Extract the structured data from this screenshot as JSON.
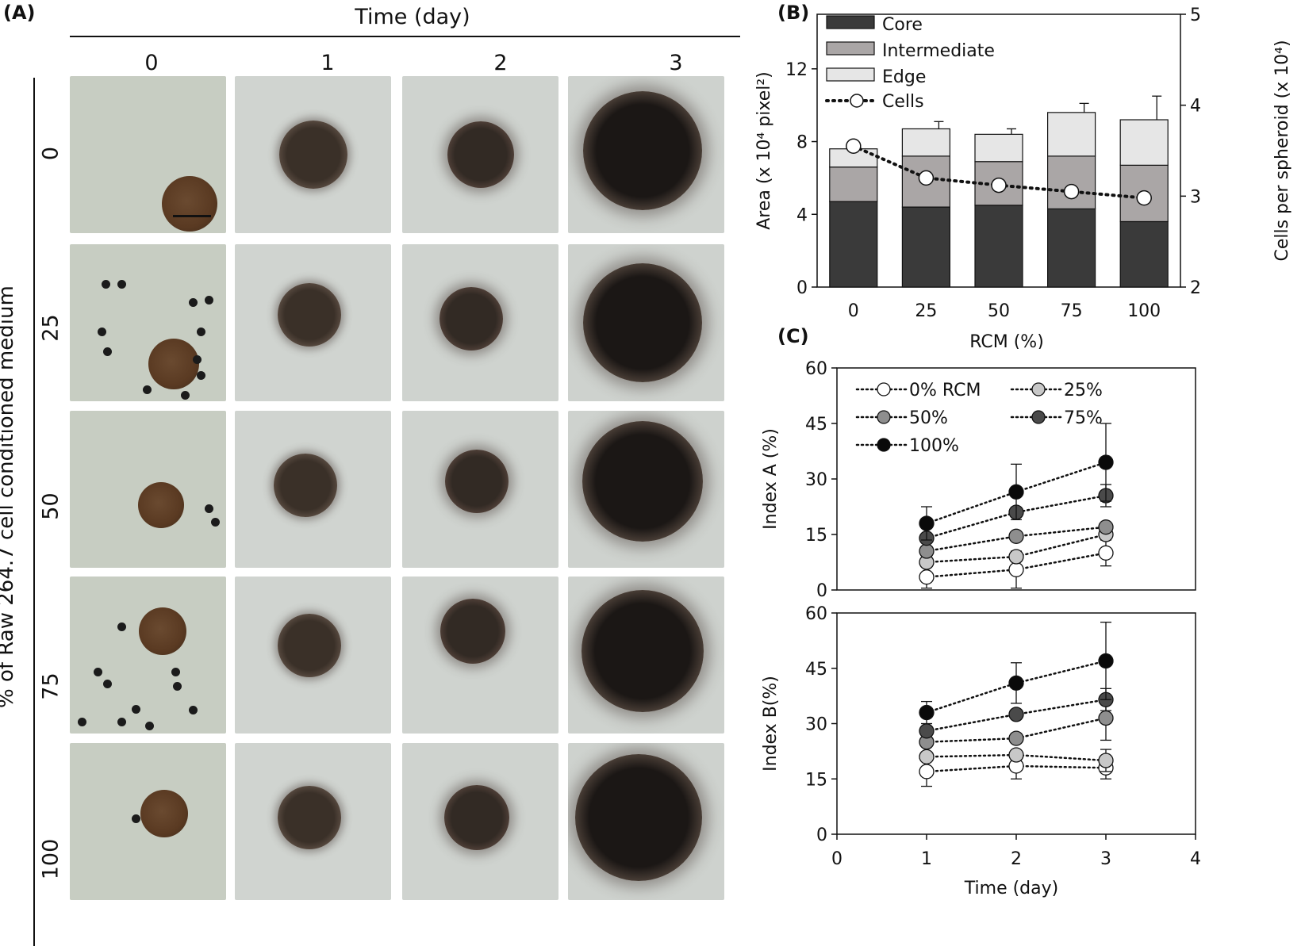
{
  "panelA": {
    "label": "(A)",
    "header": "Time (day)",
    "columns": [
      "0",
      "1",
      "2",
      "3"
    ],
    "rows": [
      "0",
      "25",
      "50",
      "75",
      "100"
    ],
    "ylabel": "% of Raw 264.7 cell conditioned medium",
    "image_description_omitted": ""
  },
  "chart_data": [
    {
      "id": "B",
      "panel_label": "(B)",
      "type": "bar",
      "stacked": true,
      "categories": [
        "0",
        "25",
        "50",
        "75",
        "100"
      ],
      "xlabel": "RCM (%)",
      "ylabel": "Area (x 10⁴ pixel²)",
      "ylim": [
        0,
        15
      ],
      "yticks": [
        0,
        4,
        8,
        12
      ],
      "y2label": "Cells per spheroid (x 10⁴)",
      "y2lim": [
        2,
        5
      ],
      "y2ticks": [
        2,
        3,
        4,
        5
      ],
      "series": [
        {
          "name": "Core",
          "color": "#3a3a3a",
          "values": [
            4.7,
            4.4,
            4.5,
            4.3,
            3.6
          ],
          "err": [
            0.8,
            1.0,
            0.6,
            0.1,
            0.6
          ]
        },
        {
          "name": "Intermediate",
          "color": "#aaa6a6",
          "values": [
            1.9,
            2.8,
            2.4,
            2.9,
            3.1
          ],
          "err": [
            0.4,
            0.6,
            0.6,
            0.7,
            0.7
          ]
        },
        {
          "name": "Edge",
          "color": "#e6e6e6",
          "values": [
            1.0,
            1.5,
            1.5,
            2.4,
            2.5
          ],
          "err": [
            0.0,
            0.4,
            0.3,
            0.5,
            1.3
          ]
        }
      ],
      "line_series": {
        "name": "Cells",
        "axis": "right",
        "values": [
          3.55,
          3.2,
          3.12,
          3.05,
          2.98
        ]
      },
      "legend_position": "top-left"
    },
    {
      "id": "C-top",
      "panel_label": "(C)",
      "type": "scatter",
      "connected": true,
      "x": [
        1,
        2,
        3
      ],
      "xlim": [
        0,
        4
      ],
      "ylim": [
        0,
        60
      ],
      "yticks": [
        0,
        15,
        30,
        45,
        60
      ],
      "ylabel": "Index A (%)",
      "series": [
        {
          "name": "0% RCM",
          "color": "#ffffff",
          "values": [
            3.5,
            5.5,
            10
          ],
          "err": [
            3,
            5,
            3.5
          ]
        },
        {
          "name": "25%",
          "color": "#c8c8c8",
          "values": [
            7.5,
            9,
            15
          ],
          "err": [
            0,
            0,
            0
          ]
        },
        {
          "name": "50%",
          "color": "#8e8e8e",
          "values": [
            10.5,
            14.5,
            17
          ],
          "err": [
            0,
            0,
            0
          ]
        },
        {
          "name": "75%",
          "color": "#4a4a4a",
          "values": [
            14,
            21,
            25.5
          ],
          "err": [
            0,
            0,
            3
          ]
        },
        {
          "name": "100%",
          "color": "#0a0a0a",
          "values": [
            18,
            26.5,
            34.5
          ],
          "err": [
            4.5,
            7.5,
            10.5
          ]
        }
      ],
      "legend_position": "top-left"
    },
    {
      "id": "C-bottom",
      "type": "scatter",
      "connected": true,
      "x": [
        1,
        2,
        3
      ],
      "xlim": [
        0,
        4
      ],
      "xticks": [
        0,
        1,
        2,
        3,
        4
      ],
      "xlabel": "Time (day)",
      "ylim": [
        0,
        60
      ],
      "yticks": [
        0,
        15,
        30,
        45,
        60
      ],
      "ylabel": "Index B(%)",
      "series": [
        {
          "name": "0% RCM",
          "color": "#ffffff",
          "values": [
            17,
            18.5,
            18
          ],
          "err": [
            4,
            3.5,
            3
          ]
        },
        {
          "name": "25%",
          "color": "#c8c8c8",
          "values": [
            21,
            21.5,
            20
          ],
          "err": [
            0,
            0,
            3
          ]
        },
        {
          "name": "50%",
          "color": "#8e8e8e",
          "values": [
            25,
            26,
            31.5
          ],
          "err": [
            0,
            0,
            6
          ]
        },
        {
          "name": "75%",
          "color": "#4a4a4a",
          "values": [
            28,
            32.5,
            36.5
          ],
          "err": [
            0,
            0,
            3
          ]
        },
        {
          "name": "100%",
          "color": "#0a0a0a",
          "values": [
            33,
            41,
            47
          ],
          "err": [
            3,
            5.5,
            10.5
          ]
        }
      ]
    }
  ]
}
